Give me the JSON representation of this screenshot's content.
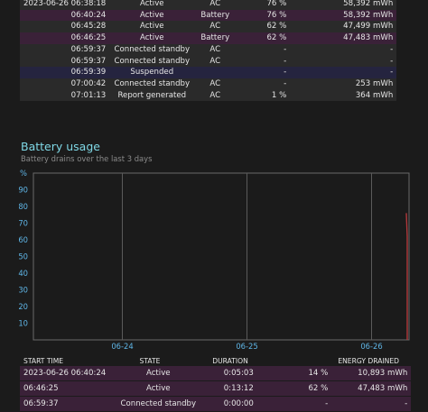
{
  "recent_usage": {
    "rows": [
      {
        "date": "2023-06-26  06:38:18",
        "state": "Active",
        "source": "AC",
        "percent": "76 %",
        "capacity": "58,392 mWh",
        "style": "row-dark"
      },
      {
        "date": "06:40:24",
        "state": "Active",
        "source": "Battery",
        "percent": "76 %",
        "capacity": "58,392 mWh",
        "style": "row-mag"
      },
      {
        "date": "06:45:28",
        "state": "Active",
        "source": "AC",
        "percent": "62 %",
        "capacity": "47,499 mWh",
        "style": "row-dark"
      },
      {
        "date": "06:46:25",
        "state": "Active",
        "source": "Battery",
        "percent": "62 %",
        "capacity": "47,483 mWh",
        "style": "row-mag"
      },
      {
        "date": "06:59:37",
        "state": "Connected standby",
        "source": "AC",
        "percent": "-",
        "capacity": "-",
        "style": "row-dark"
      },
      {
        "date": "06:59:37",
        "state": "Connected standby",
        "source": "AC",
        "percent": "-",
        "capacity": "-",
        "style": "row-dark"
      },
      {
        "date": "06:59:39",
        "state": "Suspended",
        "source": "",
        "percent": "-",
        "capacity": "-",
        "style": "row-blue"
      },
      {
        "date": "07:00:42",
        "state": "Connected standby",
        "source": "AC",
        "percent": "-",
        "capacity": "253 mWh",
        "style": "row-dark"
      },
      {
        "date": "07:01:13",
        "state": "Report generated",
        "source": "AC",
        "percent": "1 %",
        "capacity": "364 mWh",
        "style": "row-dark"
      }
    ]
  },
  "battery_usage": {
    "title": "Battery usage",
    "subtitle": "Battery drains over the last 3 days"
  },
  "chart_data": {
    "type": "line",
    "title": "",
    "ylabel": "%",
    "ylim": [
      0,
      100
    ],
    "yticks": [
      "90",
      "80",
      "70",
      "60",
      "50",
      "40",
      "30",
      "20",
      "10"
    ],
    "xticks": [
      "06-24",
      "06-25",
      "06-26"
    ],
    "grid": true,
    "series": [
      {
        "x": [
          "06-26 06:40",
          "06-26 06:45"
        ],
        "y": [
          76,
          62
        ]
      }
    ],
    "color": "#b0383b"
  },
  "usage_table": {
    "headers": {
      "start_time": "START TIME",
      "state": "STATE",
      "duration": "DURATION",
      "energy": "ENERGY DRAINED"
    },
    "rows": [
      {
        "start": "2023-06-26  06:40:24",
        "state": "Active",
        "duration": "0:05:03",
        "percent": "14 %",
        "energy": "10,893 mWh",
        "style": "row-mag"
      },
      {
        "start": "06:46:25",
        "state": "Active",
        "duration": "0:13:12",
        "percent": "62 %",
        "energy": "47,483 mWh",
        "style": "row-mag"
      },
      {
        "start": "06:59:37",
        "state": "Connected standby",
        "duration": "0:00:00",
        "percent": "-",
        "energy": "-",
        "style": "row-mag"
      }
    ]
  }
}
